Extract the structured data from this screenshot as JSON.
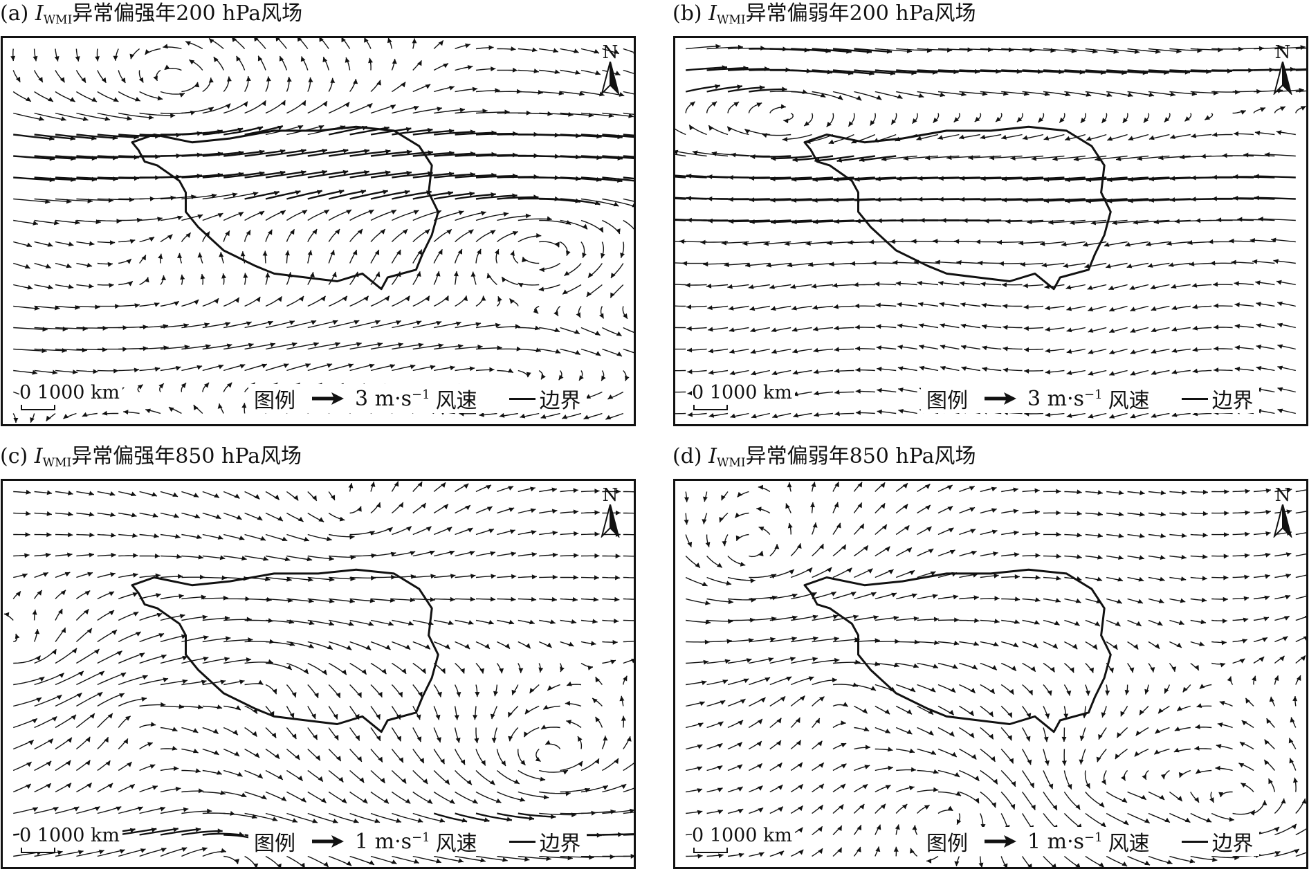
{
  "panels": [
    {
      "id": "a",
      "prefix": "(a) ",
      "index_main": "I",
      "index_sub": "WMI",
      "title_rest": "异常偏强年200 hPa风场",
      "north": "N",
      "scale_label": "0 1000 km",
      "legend": {
        "title": "图例",
        "unit": "3 m·s",
        "exp": "−1",
        "wind": "风速",
        "boundary": "边界"
      },
      "flow_pattern": "westerly-jet-over-plateau"
    },
    {
      "id": "b",
      "prefix": "(b) ",
      "index_main": "I",
      "index_sub": "WMI",
      "title_rest": "异常偏弱年200 hPa风场",
      "north": "N",
      "scale_label": "0 1000 km",
      "legend": {
        "title": "图例",
        "unit": "3 m·s",
        "exp": "−1",
        "wind": "风速",
        "boundary": "边界"
      },
      "flow_pattern": "easterly-anomaly-over-plateau"
    },
    {
      "id": "c",
      "prefix": "(c) ",
      "index_main": "I",
      "index_sub": "WMI",
      "title_rest": "异常偏强年850 hPa风场",
      "north": "N",
      "scale_label": "0 1000 km",
      "legend": {
        "title": "图例",
        "unit": "1 m·s",
        "exp": "−1",
        "wind": "风速",
        "boundary": "边界"
      },
      "flow_pattern": "low-level-vortices"
    },
    {
      "id": "d",
      "prefix": "(d) ",
      "index_main": "I",
      "index_sub": "WMI",
      "title_rest": "异常偏弱年850 hPa风场",
      "north": "N",
      "scale_label": "0 1000 km",
      "legend": {
        "title": "图例",
        "unit": "1 m·s",
        "exp": "−1",
        "wind": "风速",
        "boundary": "边界"
      },
      "flow_pattern": "low-level-vortices-weak"
    }
  ]
}
